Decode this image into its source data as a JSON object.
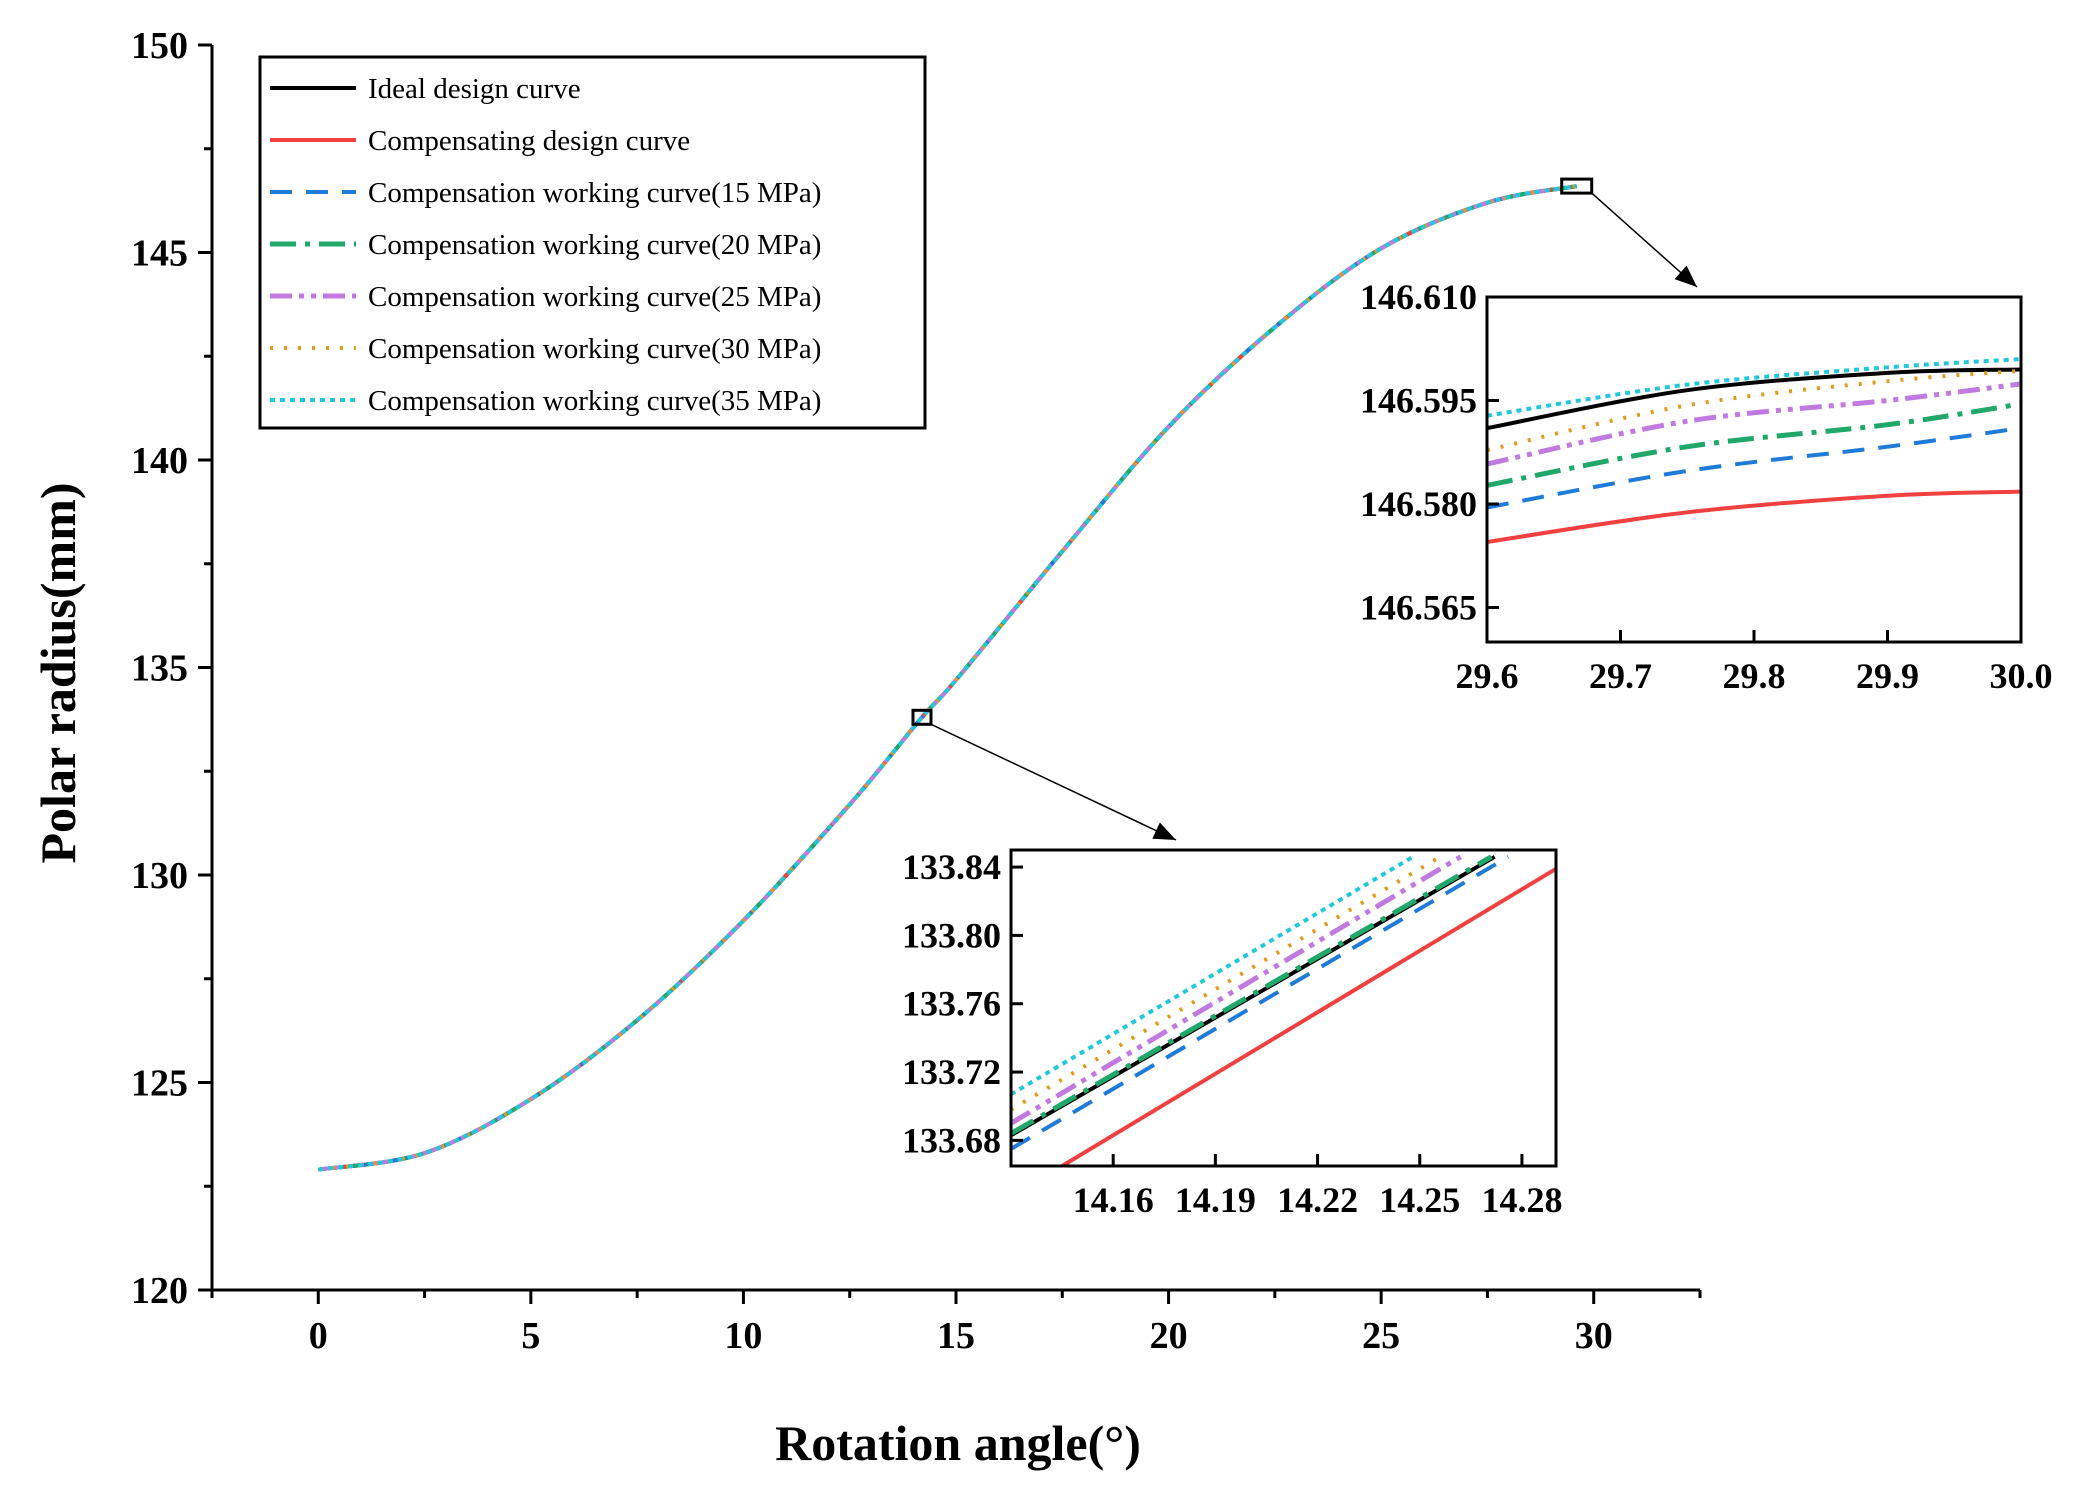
{
  "chart_data": {
    "type": "line",
    "xlabel": "Rotation angle(°)",
    "ylabel": "Polar radius(mm)",
    "xlim": [
      -2.5,
      32.5
    ],
    "ylim": [
      120,
      150
    ],
    "xticks": [
      0,
      5,
      10,
      15,
      20,
      25,
      30
    ],
    "yticks": [
      120,
      125,
      130,
      135,
      140,
      145,
      150
    ],
    "grid": false,
    "legend_position": "top-left",
    "series": [
      {
        "name": "Ideal design curve",
        "color": "#000000",
        "dash": "solid"
      },
      {
        "name": "Compensating design curve",
        "color": "#f04040",
        "dash": "solid"
      },
      {
        "name": "Compensation working curve(15 MPa)",
        "color": "#1f7bd8",
        "dash": "dash"
      },
      {
        "name": "Compensation working curve(20 MPa)",
        "color": "#20a86a",
        "dash": "dashdot"
      },
      {
        "name": "Compensation working curve(25 MPa)",
        "color": "#c07ae0",
        "dash": "dashdotdot"
      },
      {
        "name": "Compensation working curve(30 MPa)",
        "color": "#e09a20",
        "dash": "dot"
      },
      {
        "name": "Compensation working curve(35 MPa)",
        "color": "#20c8d8",
        "dash": "shortdot"
      }
    ],
    "main_curve": {
      "x": [
        0,
        2.5,
        5,
        7.5,
        10,
        12.5,
        14.2,
        15,
        17.5,
        20,
        22.5,
        25,
        27.5,
        29.6
      ],
      "y": [
        122.9,
        123.3,
        124.6,
        126.5,
        128.9,
        131.7,
        133.8,
        134.7,
        137.8,
        140.8,
        143.2,
        145.1,
        146.2,
        146.6
      ]
    },
    "insets": [
      {
        "name": "inset-top",
        "xlim": [
          29.6,
          30.0
        ],
        "ylim": [
          146.56,
          146.61
        ],
        "xticks": [
          29.6,
          29.7,
          29.8,
          29.9,
          30.0
        ],
        "xtick_labels": [
          "29.6",
          "29.7",
          "29.8",
          "29.9",
          "30.0"
        ],
        "yticks": [
          146.565,
          146.58,
          146.595,
          146.61
        ],
        "ytick_labels": [
          "146.565",
          "146.580",
          "146.595",
          "146.610"
        ],
        "zoom_box": {
          "x": 29.6,
          "y": 146.6
        },
        "series_y": [
          {
            "x": [
              29.6,
              29.75,
              29.9,
              30.0
            ],
            "y": [
              146.591,
              146.5965,
              146.599,
              146.5995
            ]
          },
          {
            "x": [
              29.6,
              29.75,
              29.9,
              30.0
            ],
            "y": [
              146.5745,
              146.5788,
              146.5812,
              146.5818
            ]
          },
          {
            "x": [
              29.6,
              29.75,
              29.9,
              30.0
            ],
            "y": [
              146.5795,
              146.5848,
              146.5883,
              146.591
            ]
          },
          {
            "x": [
              29.6,
              29.75,
              29.9,
              30.0
            ],
            "y": [
              146.5827,
              146.5883,
              146.5915,
              146.5945
            ]
          },
          {
            "x": [
              29.6,
              29.75,
              29.9,
              30.0
            ],
            "y": [
              146.5858,
              146.592,
              146.595,
              146.5974
            ]
          },
          {
            "x": [
              29.6,
              29.75,
              29.9,
              30.0
            ],
            "y": [
              146.5878,
              146.5943,
              146.5978,
              146.5993
            ]
          },
          {
            "x": [
              29.6,
              29.75,
              29.9,
              30.0
            ],
            "y": [
              146.5928,
              146.5973,
              146.5998,
              146.601
            ]
          }
        ]
      },
      {
        "name": "inset-bottom",
        "xlim": [
          14.13,
          14.29
        ],
        "ylim": [
          133.665,
          133.85
        ],
        "xticks": [
          14.16,
          14.19,
          14.22,
          14.25,
          14.28
        ],
        "xtick_labels": [
          "14.16",
          "14.19",
          "14.22",
          "14.25",
          "14.28"
        ],
        "yticks": [
          133.68,
          133.72,
          133.76,
          133.8,
          133.84
        ],
        "ytick_labels": [
          "133.68",
          "133.72",
          "133.76",
          "133.80",
          "133.84"
        ],
        "zoom_box": {
          "x": 14.2,
          "y": 133.8
        },
        "series_y": [
          {
            "x": [
              14.13,
              14.272
            ],
            "y": [
              133.683,
              133.846
            ]
          },
          {
            "x": [
              14.145,
              14.29
            ],
            "y": [
              133.665,
              133.839
            ]
          },
          {
            "x": [
              14.13,
              14.276
            ],
            "y": [
              133.675,
              133.846
            ]
          },
          {
            "x": [
              14.13,
              14.271
            ],
            "y": [
              133.684,
              133.846
            ]
          },
          {
            "x": [
              14.13,
              14.262
            ],
            "y": [
              133.69,
              133.846
            ]
          },
          {
            "x": [
              14.13,
              14.256
            ],
            "y": [
              133.698,
              133.846
            ]
          },
          {
            "x": [
              14.13,
              14.248
            ],
            "y": [
              133.707,
              133.846
            ]
          }
        ]
      }
    ]
  }
}
